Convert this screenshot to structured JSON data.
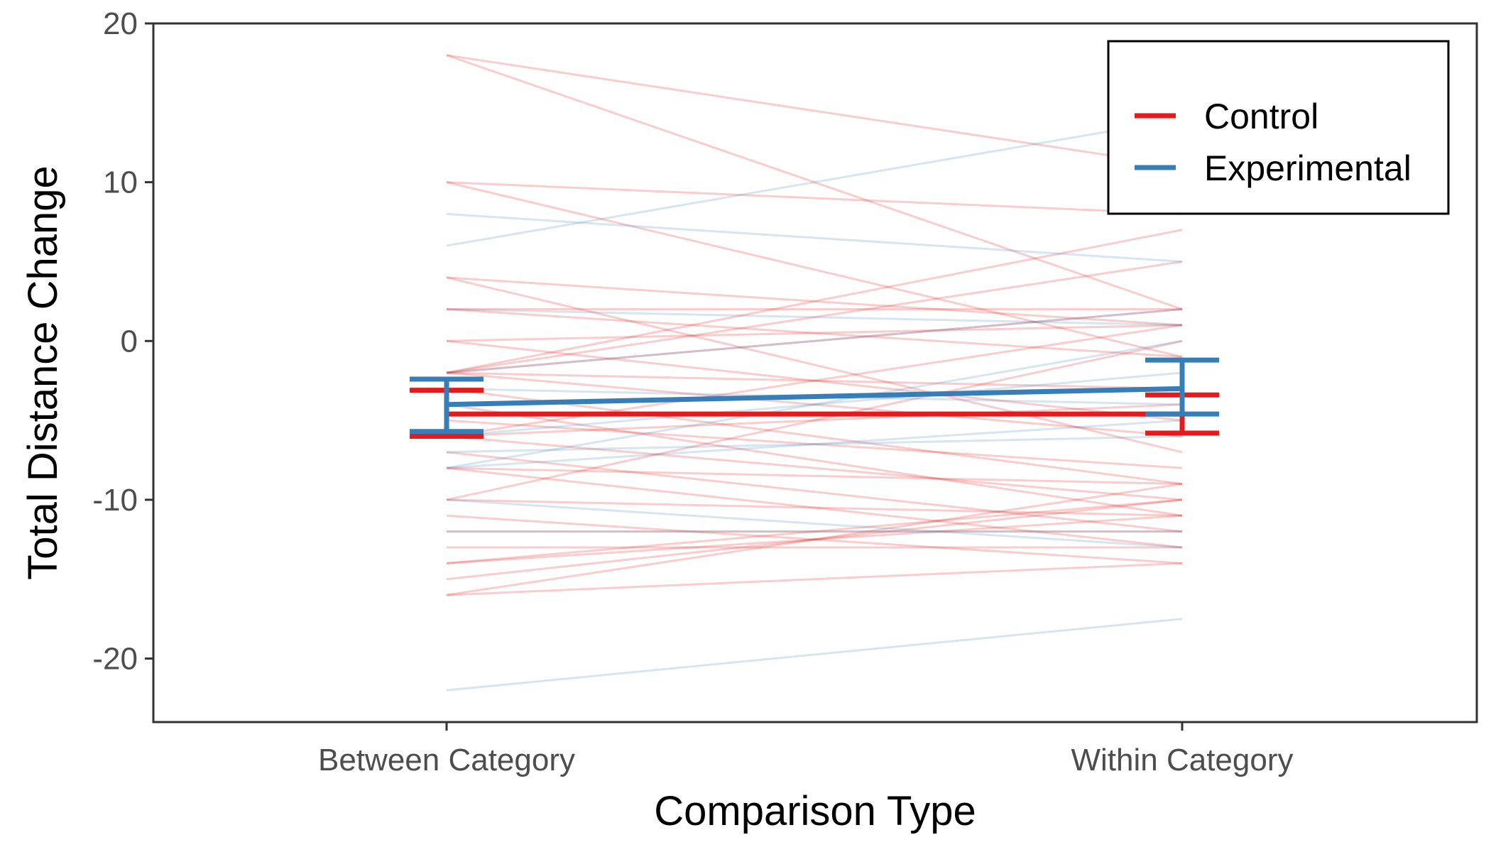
{
  "chart_data": {
    "type": "line",
    "xlabel": "Comparison Type",
    "ylabel": "Total Distance Change",
    "categories": [
      "Between Category",
      "Within Category"
    ],
    "ylim": [
      -24,
      20
    ],
    "yticks": [
      20,
      10,
      0,
      -10,
      -20
    ],
    "ytick_labels": [
      "20",
      "10",
      "0",
      "-10",
      "-20"
    ],
    "grid": false,
    "legend_position": "top-right",
    "legend": [
      {
        "name": "Control",
        "color": "#e41a1c"
      },
      {
        "name": "Experimental",
        "color": "#377eb8"
      }
    ],
    "series": [
      {
        "name": "Control",
        "color": "#e41a1c",
        "mean": [
          -4.6,
          -4.6
        ],
        "error_lower": [
          -6.0,
          -5.8
        ],
        "error_upper": [
          -3.1,
          -3.4
        ],
        "participants": [
          [
            18,
            2
          ],
          [
            18,
            11
          ],
          [
            10,
            8
          ],
          [
            10,
            -1
          ],
          [
            4,
            1
          ],
          [
            4,
            -7
          ],
          [
            2,
            2
          ],
          [
            2,
            -1
          ],
          [
            0,
            1
          ],
          [
            0,
            -5
          ],
          [
            -2,
            7
          ],
          [
            -2,
            5
          ],
          [
            -2,
            2
          ],
          [
            -2,
            -3
          ],
          [
            -2,
            -6
          ],
          [
            -3,
            -9
          ],
          [
            -4,
            -11
          ],
          [
            -5,
            -8
          ],
          [
            -6,
            -10
          ],
          [
            -6,
            -4
          ],
          [
            -7,
            -12
          ],
          [
            -8,
            -13
          ],
          [
            -8,
            -9
          ],
          [
            -10,
            -11
          ],
          [
            -10,
            0
          ],
          [
            -11,
            -14
          ],
          [
            -12,
            -12
          ],
          [
            -13,
            -13
          ],
          [
            -14,
            -11
          ],
          [
            -14,
            -10
          ],
          [
            -15,
            -10
          ],
          [
            -16,
            -14
          ],
          [
            -16,
            -9
          ],
          [
            -6,
            1
          ]
        ]
      },
      {
        "name": "Experimental",
        "color": "#377eb8",
        "mean": [
          -4.0,
          -3.0
        ],
        "error_lower": [
          -5.7,
          -4.6
        ],
        "error_upper": [
          -2.4,
          -1.2
        ],
        "participants": [
          [
            6,
            14
          ],
          [
            8,
            5
          ],
          [
            2,
            1
          ],
          [
            -2,
            2
          ],
          [
            -3,
            -4
          ],
          [
            -6,
            -2
          ],
          [
            -7,
            -6
          ],
          [
            -8,
            0
          ],
          [
            -8,
            -5
          ],
          [
            -10,
            -13
          ],
          [
            -12,
            -12
          ],
          [
            -22,
            -17.5
          ]
        ]
      }
    ]
  }
}
